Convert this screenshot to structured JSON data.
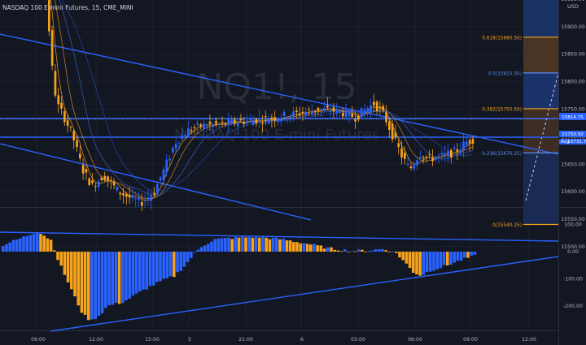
{
  "header": {
    "title": "NASDAQ 100 E-mini Futures, 15, CME_MINI"
  },
  "watermark": {
    "symbol": "NQ1!, 15",
    "name": "NASDAQ 100 E-mini Futures"
  },
  "axis": {
    "currency": "USD",
    "price_labels": [
      "16150.00",
      "16100.00",
      "16050.00",
      "16000.00",
      "15950.00",
      "15900.00",
      "15850.00",
      "15800.00",
      "15750.00",
      "15700.00",
      "15650.00",
      "15600.00",
      "15550.00",
      "15500.00"
    ],
    "osc_labels": [
      "100.00",
      "0.00",
      "-100.00",
      "-200.00"
    ],
    "time_labels": [
      "09:00",
      "12:00",
      "15:00",
      "5",
      "21:00",
      "6",
      "03:00",
      "06:00",
      "09:00",
      "12:00"
    ],
    "badges": [
      {
        "text": "15814.75",
        "color": "#2962ff"
      },
      {
        "text": "15750.50",
        "color": "#2962ff"
      },
      {
        "text": "Avg",
        "color": "#2962ff"
      },
      {
        "text": "15731.75",
        "color": "#2962ff"
      }
    ]
  },
  "fib": {
    "levels": [
      {
        "ratio": 1,
        "label": "1(16090.75)",
        "price": 16090.75,
        "color": "#f7a21b"
      },
      {
        "ratio": 0.786,
        "label": "0.786(15973.00)",
        "price": 15973.0,
        "color": "#5b8def"
      },
      {
        "ratio": 0.618,
        "label": "0.618(15880.50)",
        "price": 15880.5,
        "color": "#f7a21b"
      },
      {
        "ratio": 0.5,
        "label": "0.5(15815.50)",
        "price": 15815.5,
        "color": "#5b8def"
      },
      {
        "ratio": 0.382,
        "label": "0.382(15750.50)",
        "price": 15750.5,
        "color": "#f7a21b"
      },
      {
        "ratio": 0.236,
        "label": "0.236(15670.25)",
        "price": 15670.25,
        "color": "#5b8def"
      },
      {
        "ratio": 0,
        "label": "0(15540.25)",
        "price": 15540.25,
        "color": "#f7a21b"
      }
    ]
  },
  "colors": {
    "up": "#2962ff",
    "down": "#f7a21b",
    "bg": "#131722",
    "line": "#2962ff"
  }
}
